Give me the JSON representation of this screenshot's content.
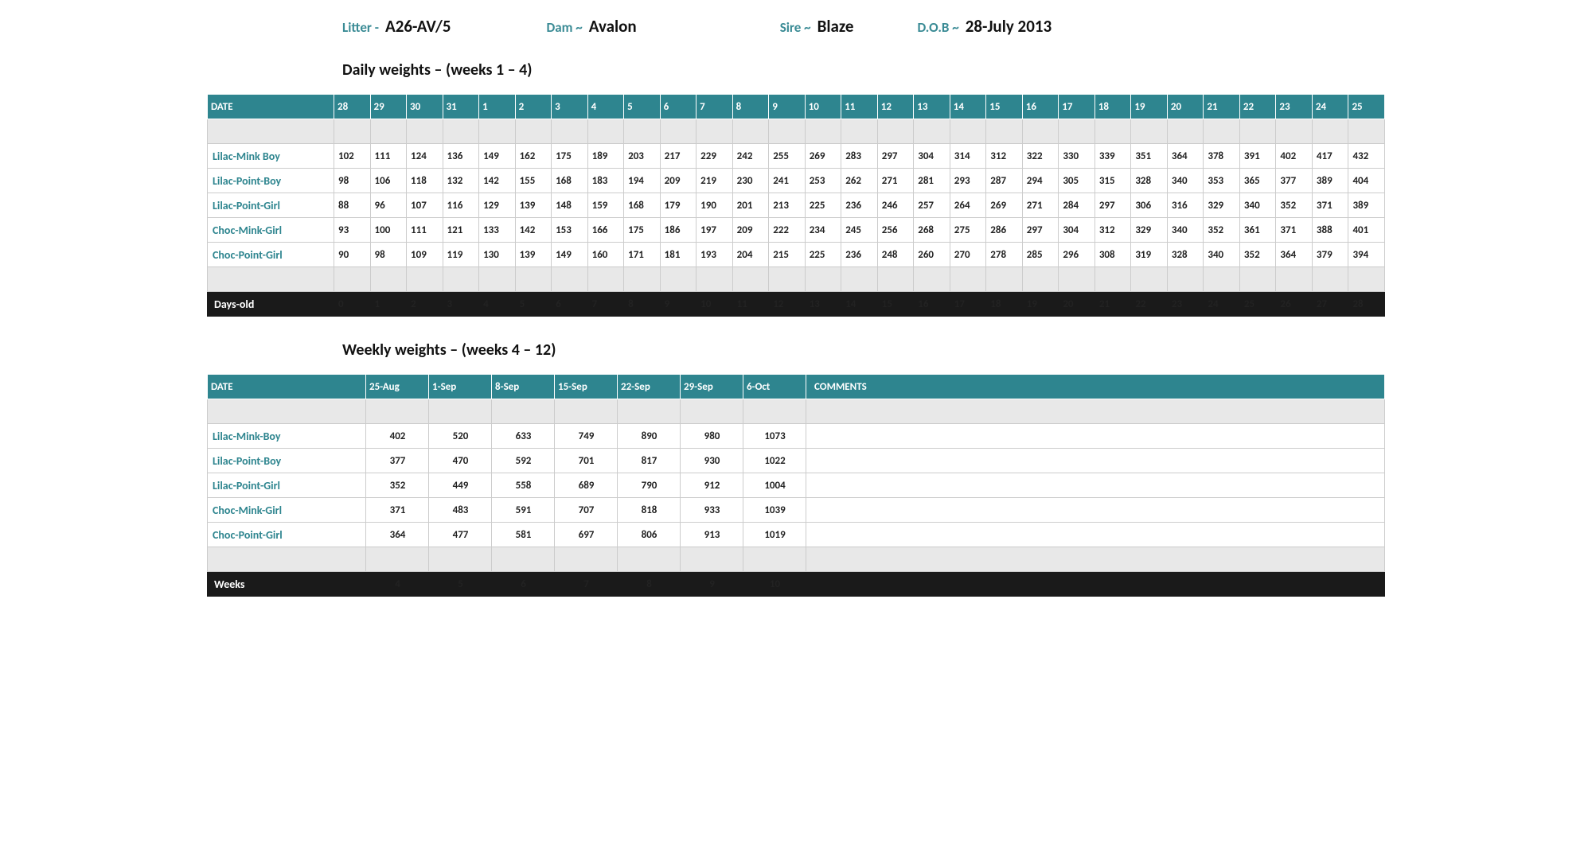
{
  "header": {
    "litter_label": "Litter -",
    "litter_value": "A26-AV/5",
    "dam_label": "Dam ~",
    "dam_value": "Avalon",
    "sire_label": "Sire ~",
    "sire_value": "Blaze",
    "dob_label": "D.O.B ~",
    "dob_value": "28-July 2013"
  },
  "daily": {
    "title": "Daily weights – (weeks 1 – 4)",
    "date_label": "DATE",
    "dates": [
      "28",
      "29",
      "30",
      "31",
      "1",
      "2",
      "3",
      "4",
      "5",
      "6",
      "7",
      "8",
      "9",
      "10",
      "11",
      "12",
      "13",
      "14",
      "15",
      "16",
      "17",
      "18",
      "19",
      "20",
      "21",
      "22",
      "23",
      "24",
      "25"
    ],
    "rows": [
      {
        "name": "Lilac-Mink Boy",
        "values": [
          "102",
          "111",
          "124",
          "136",
          "149",
          "162",
          "175",
          "189",
          "203",
          "217",
          "229",
          "242",
          "255",
          "269",
          "283",
          "297",
          "304",
          "314",
          "312",
          "322",
          "330",
          "339",
          "351",
          "364",
          "378",
          "391",
          "402",
          "417",
          "432"
        ]
      },
      {
        "name": "Lilac-Point-Boy",
        "values": [
          "98",
          "106",
          "118",
          "132",
          "142",
          "155",
          "168",
          "183",
          "194",
          "209",
          "219",
          "230",
          "241",
          "253",
          "262",
          "271",
          "281",
          "293",
          "287",
          "294",
          "305",
          "315",
          "328",
          "340",
          "353",
          "365",
          "377",
          "389",
          "404"
        ]
      },
      {
        "name": "Lilac-Point-Girl",
        "values": [
          "88",
          "96",
          "107",
          "116",
          "129",
          "139",
          "148",
          "159",
          "168",
          "179",
          "190",
          "201",
          "213",
          "225",
          "236",
          "246",
          "257",
          "264",
          "269",
          "271",
          "284",
          "297",
          "306",
          "316",
          "329",
          "340",
          "352",
          "371",
          "389"
        ]
      },
      {
        "name": "Choc-Mink-Girl",
        "values": [
          "93",
          "100",
          "111",
          "121",
          "133",
          "142",
          "153",
          "166",
          "175",
          "186",
          "197",
          "209",
          "222",
          "234",
          "245",
          "256",
          "268",
          "275",
          "286",
          "297",
          "304",
          "312",
          "329",
          "340",
          "352",
          "361",
          "371",
          "388",
          "401"
        ]
      },
      {
        "name": "Choc-Point-Girl",
        "values": [
          "90",
          "98",
          "109",
          "119",
          "130",
          "139",
          "149",
          "160",
          "171",
          "181",
          "193",
          "204",
          "215",
          "225",
          "236",
          "248",
          "260",
          "270",
          "278",
          "285",
          "296",
          "308",
          "319",
          "328",
          "340",
          "352",
          "364",
          "379",
          "394"
        ]
      }
    ],
    "footer_label": "Days-old",
    "footer": [
      "0",
      "1",
      "2",
      "3",
      "4",
      "5",
      "6",
      "7",
      "8",
      "9",
      "10",
      "11",
      "12",
      "13",
      "14",
      "15",
      "16",
      "17",
      "18",
      "19",
      "20",
      "21",
      "22",
      "23",
      "24",
      "25",
      "26",
      "27",
      "28"
    ]
  },
  "weekly": {
    "title": "Weekly weights – (weeks 4 – 12)",
    "date_label": "DATE",
    "dates": [
      "25-Aug",
      "1-Sep",
      "8-Sep",
      "15-Sep",
      "22-Sep",
      "29-Sep",
      "6-Oct"
    ],
    "comments_label": "COMMENTS",
    "rows": [
      {
        "name": "Lilac-Mink-Boy",
        "values": [
          "402",
          "520",
          "633",
          "749",
          "890",
          "980",
          "1073"
        ]
      },
      {
        "name": "Lilac-Point-Boy",
        "values": [
          "377",
          "470",
          "592",
          "701",
          "817",
          "930",
          "1022"
        ]
      },
      {
        "name": "Lilac-Point-Girl",
        "values": [
          "352",
          "449",
          "558",
          "689",
          "790",
          "912",
          "1004"
        ]
      },
      {
        "name": "Choc-Mink-Girl",
        "values": [
          "371",
          "483",
          "591",
          "707",
          "818",
          "933",
          "1039"
        ]
      },
      {
        "name": "Choc-Point-Girl",
        "values": [
          "364",
          "477",
          "581",
          "697",
          "806",
          "913",
          "1019"
        ]
      }
    ],
    "footer_label": "Weeks",
    "footer": [
      "4",
      "5",
      "6",
      "7",
      "8",
      "9",
      "10"
    ]
  },
  "style": {
    "teal": "#2e858f",
    "header_text": "#3a8b95",
    "black": "#1a1a1a",
    "blank_bg": "#e8e8e8",
    "border": "#cccccc",
    "page_bg": "#ffffff"
  }
}
